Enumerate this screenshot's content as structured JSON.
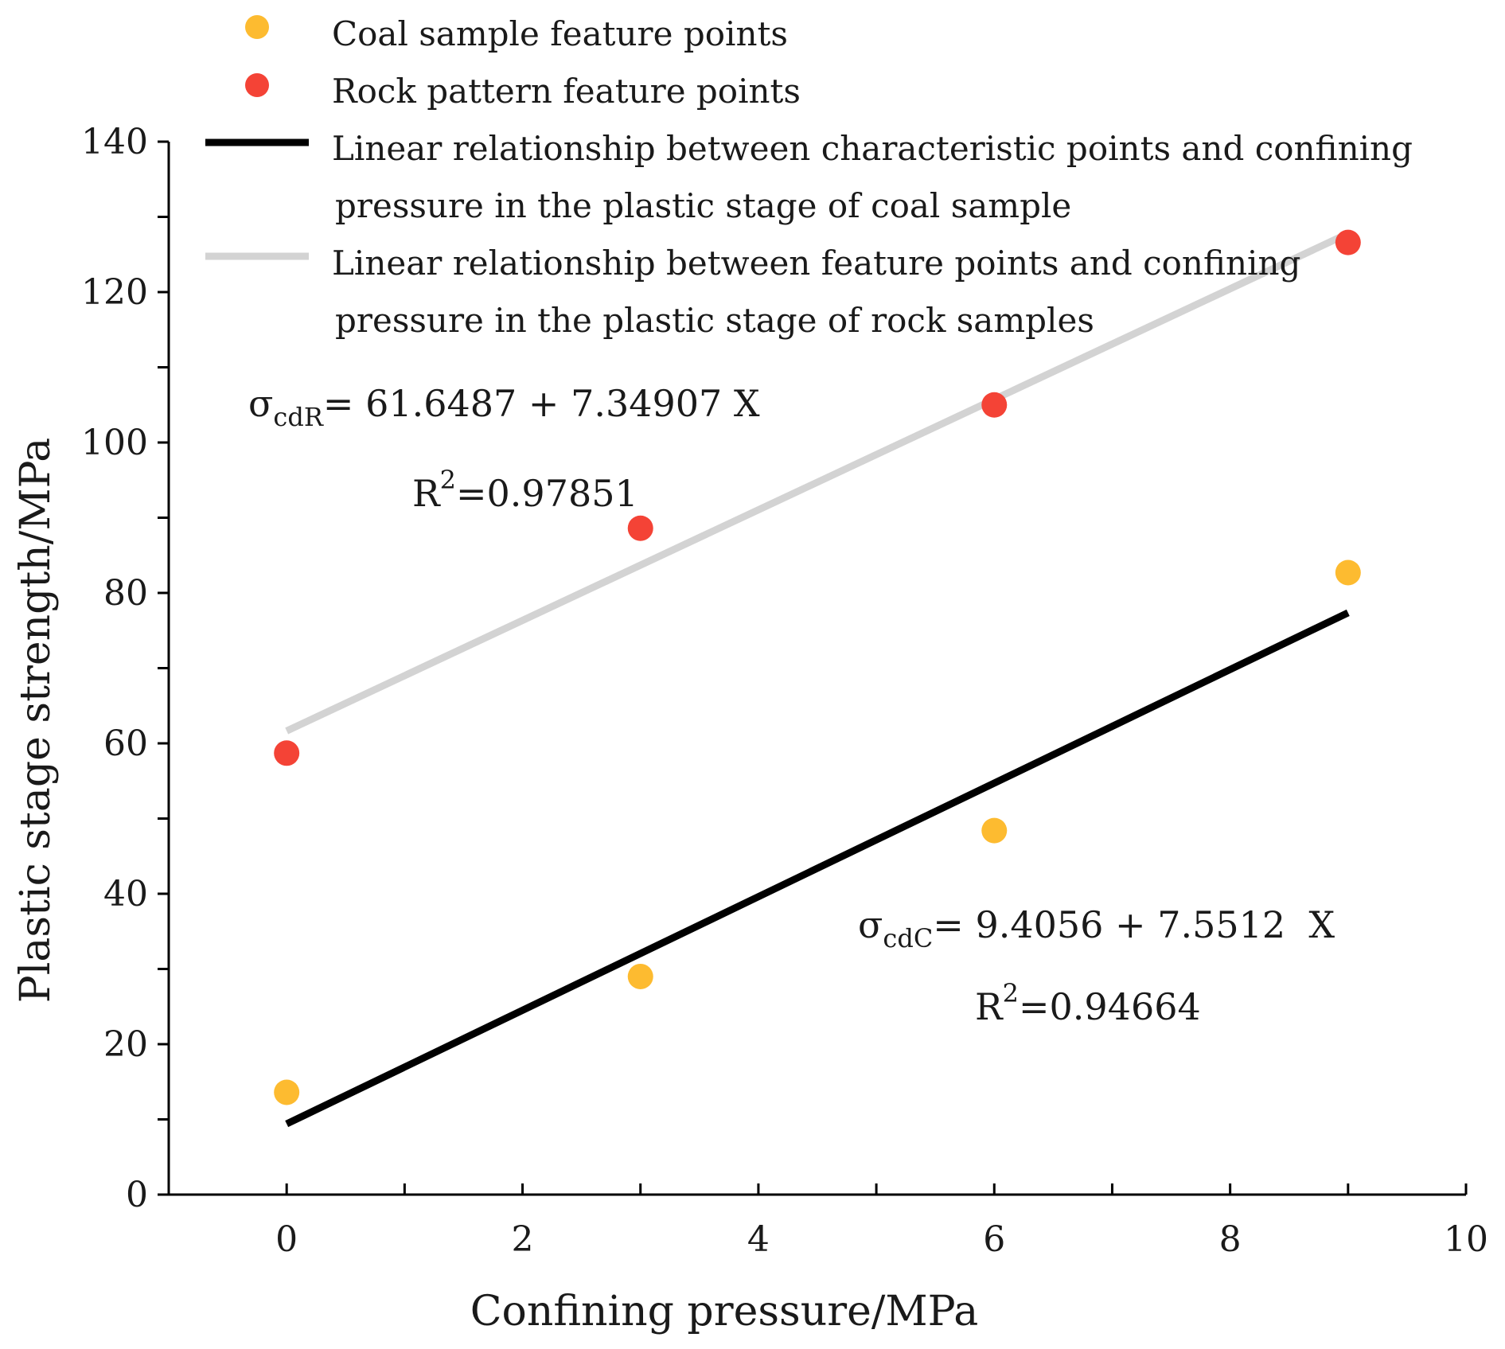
{
  "chart_data": {
    "type": "scatter",
    "xlabel": "Confining pressure/MPa",
    "ylabel": "Plastic stage strength/MPa",
    "xlim": [
      -1,
      10
    ],
    "ylim": [
      0,
      140
    ],
    "x_ticks": [
      0,
      2,
      4,
      6,
      8,
      10
    ],
    "y_ticks": [
      0,
      20,
      40,
      60,
      80,
      100,
      120,
      140
    ],
    "legend_position": "top",
    "series": [
      {
        "name": "Coal sample feature points",
        "kind": "scatter",
        "color": "#fdbb30",
        "x": [
          0,
          3,
          6,
          9
        ],
        "y": [
          13.6,
          29.0,
          48.4,
          82.7
        ]
      },
      {
        "name": "Rock pattern feature points",
        "kind": "scatter",
        "color": "#f44336",
        "x": [
          0,
          3,
          6,
          9
        ],
        "y": [
          58.7,
          88.6,
          105.0,
          126.6
        ]
      },
      {
        "name_line1": "Linear relationship between characteristic points and confining",
        "name_line2": "pressure in the plastic  stage of coal sample",
        "kind": "line",
        "color": "#000000",
        "intercept": 9.4056,
        "slope": 7.5512,
        "x_range": [
          0,
          9
        ]
      },
      {
        "name_line1": "Linear relationship between feature points and confining",
        "name_line2": "pressure in the plastic stage of rock samples",
        "kind": "line",
        "color": "#d3d3d3",
        "intercept": 61.6487,
        "slope": 7.34907,
        "x_range": [
          0,
          9
        ]
      }
    ],
    "annotations": {
      "rock_eq": {
        "symbol": "σ",
        "sub": "cdR",
        "rest": "= 61.6487 + 7.34907 X"
      },
      "rock_r2": {
        "base": "R",
        "sup": "2",
        "rest": "=0.97851"
      },
      "coal_eq": {
        "symbol": "σ",
        "sub": "cdC",
        "rest": "= 9.4056 + 7.5512  X"
      },
      "coal_r2": {
        "base": "R",
        "sup": "2",
        "rest": "=0.94664"
      }
    }
  }
}
